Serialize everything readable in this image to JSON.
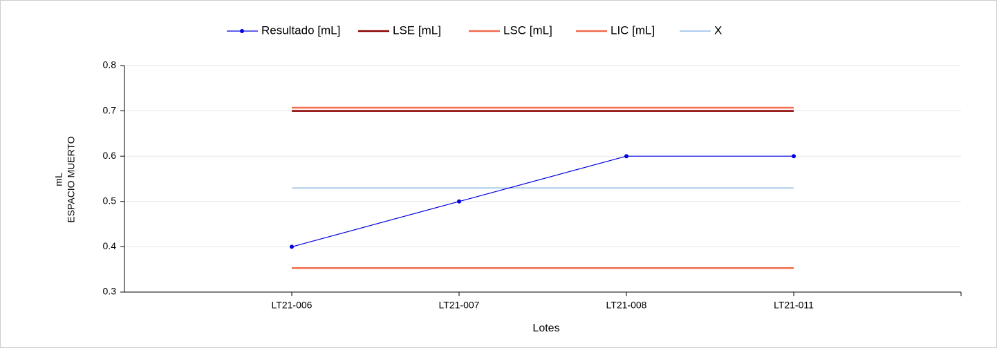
{
  "chart_data": {
    "type": "line",
    "categories": [
      "LT21-006",
      "LT21-007",
      "LT21-008",
      "LT21-011"
    ],
    "series": [
      {
        "name": "Resultado [mL]",
        "color": "#0000e0",
        "markers": true,
        "values": [
          0.4,
          0.5,
          0.6,
          0.6
        ]
      },
      {
        "name": "LSE [mL]",
        "color": "#8b0000",
        "markers": false,
        "values": [
          0.7,
          0.7,
          0.7,
          0.7
        ]
      },
      {
        "name": "LSC [mL]",
        "color": "#f26b4b",
        "markers": false,
        "values": [
          0.707,
          0.707,
          0.707,
          0.707
        ]
      },
      {
        "name": "LIC [mL]",
        "color": "#f26b4b",
        "markers": false,
        "values": [
          0.353,
          0.353,
          0.353,
          0.353
        ]
      },
      {
        "name": "X",
        "color": "#5b9bd5",
        "markers": false,
        "values": [
          0.53,
          0.53,
          0.53,
          0.53
        ]
      }
    ],
    "ylabel": [
      "mL",
      "ESPACIO MUERTO"
    ],
    "xlabel": "Lotes",
    "ylim": [
      0.3,
      0.8
    ],
    "yticks": [
      0.3,
      0.4,
      0.5,
      0.6,
      0.7,
      0.8
    ],
    "grid": true
  }
}
